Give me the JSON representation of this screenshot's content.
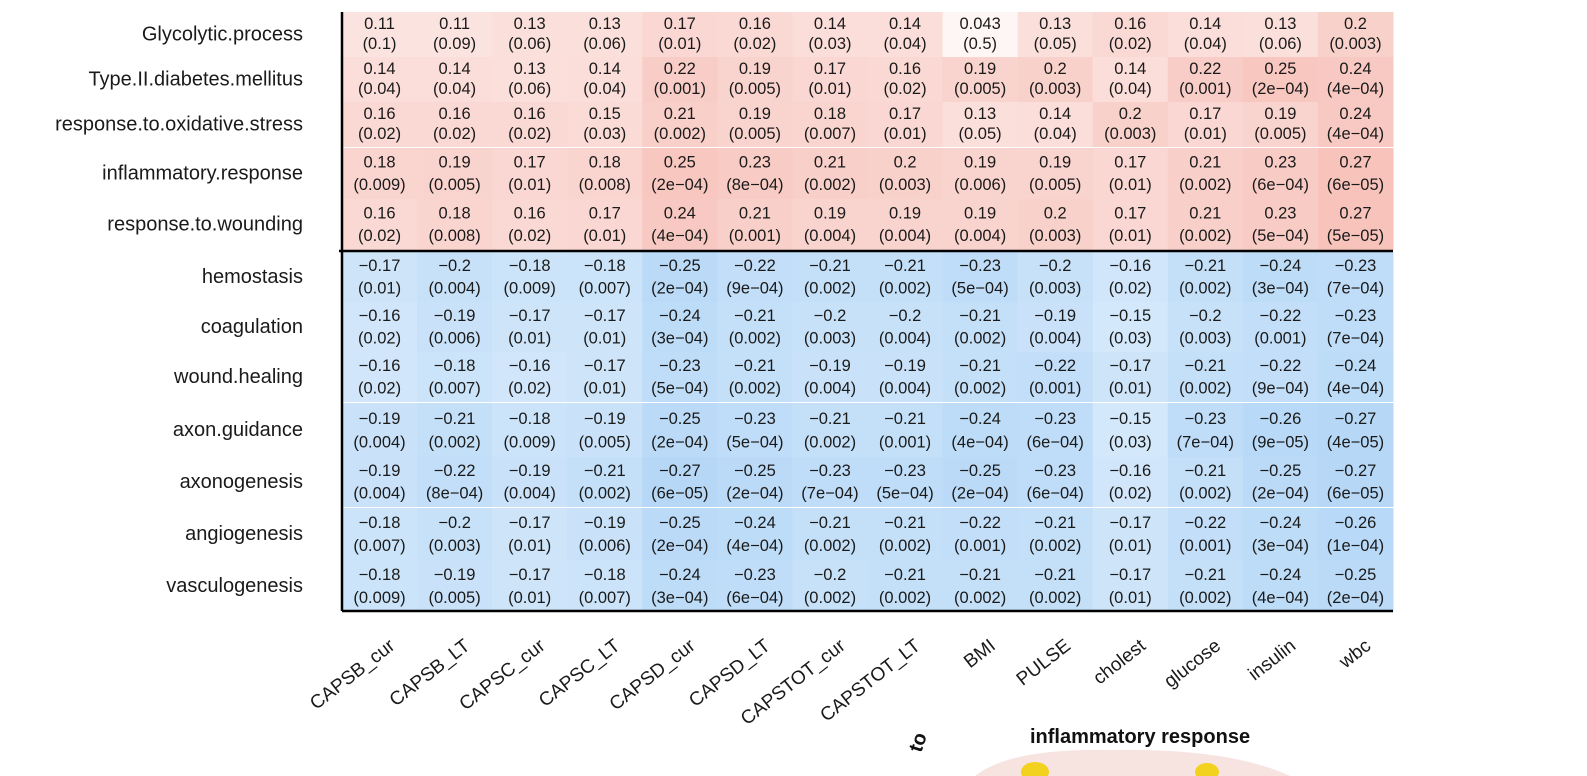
{
  "chart_data": {
    "type": "heatmap",
    "rows": [
      "Glycolytic.process",
      "Type.II.diabetes.mellitus",
      "response.to.oxidative.stress",
      "inflammatory.response",
      "response.to.wounding",
      "hemostasis",
      "coagulation",
      "wound.healing",
      "axon.guidance",
      "axonogenesis",
      "angiogenesis",
      "vasculogenesis"
    ],
    "columns": [
      "CAPSB_cur",
      "CAPSB_LT",
      "CAPSC_cur",
      "CAPSC_LT",
      "CAPSD_cur",
      "CAPSD_LT",
      "CAPSTOT_cur",
      "CAPSTOT_LT",
      "BMI",
      "PULSE",
      "cholest",
      "glucose",
      "insulin",
      "wbc"
    ],
    "values": [
      [
        "0.11",
        "0.11",
        "0.13",
        "0.13",
        "0.17",
        "0.16",
        "0.14",
        "0.14",
        "0.043",
        "0.13",
        "0.16",
        "0.14",
        "0.13",
        "0.2"
      ],
      [
        "0.14",
        "0.14",
        "0.13",
        "0.14",
        "0.22",
        "0.19",
        "0.17",
        "0.16",
        "0.19",
        "0.2",
        "0.14",
        "0.22",
        "0.25",
        "0.24"
      ],
      [
        "0.16",
        "0.16",
        "0.16",
        "0.15",
        "0.21",
        "0.19",
        "0.18",
        "0.17",
        "0.13",
        "0.14",
        "0.2",
        "0.17",
        "0.19",
        "0.24"
      ],
      [
        "0.18",
        "0.19",
        "0.17",
        "0.18",
        "0.25",
        "0.23",
        "0.21",
        "0.2",
        "0.19",
        "0.19",
        "0.17",
        "0.21",
        "0.23",
        "0.27"
      ],
      [
        "0.16",
        "0.18",
        "0.16",
        "0.17",
        "0.24",
        "0.21",
        "0.19",
        "0.19",
        "0.19",
        "0.2",
        "0.17",
        "0.21",
        "0.23",
        "0.27"
      ],
      [
        "−0.17",
        "−0.2",
        "−0.18",
        "−0.18",
        "−0.25",
        "−0.22",
        "−0.21",
        "−0.21",
        "−0.23",
        "−0.2",
        "−0.16",
        "−0.21",
        "−0.24",
        "−0.23"
      ],
      [
        "−0.16",
        "−0.19",
        "−0.17",
        "−0.17",
        "−0.24",
        "−0.21",
        "−0.2",
        "−0.2",
        "−0.21",
        "−0.19",
        "−0.15",
        "−0.2",
        "−0.22",
        "−0.23"
      ],
      [
        "−0.16",
        "−0.18",
        "−0.16",
        "−0.17",
        "−0.23",
        "−0.21",
        "−0.19",
        "−0.19",
        "−0.21",
        "−0.22",
        "−0.17",
        "−0.21",
        "−0.22",
        "−0.24"
      ],
      [
        "−0.19",
        "−0.21",
        "−0.18",
        "−0.19",
        "−0.25",
        "−0.23",
        "−0.21",
        "−0.21",
        "−0.24",
        "−0.23",
        "−0.15",
        "−0.23",
        "−0.26",
        "−0.27"
      ],
      [
        "−0.19",
        "−0.22",
        "−0.19",
        "−0.21",
        "−0.27",
        "−0.25",
        "−0.23",
        "−0.23",
        "−0.25",
        "−0.23",
        "−0.16",
        "−0.21",
        "−0.25",
        "−0.27"
      ],
      [
        "−0.18",
        "−0.2",
        "−0.17",
        "−0.19",
        "−0.25",
        "−0.24",
        "−0.21",
        "−0.21",
        "−0.22",
        "−0.21",
        "−0.17",
        "−0.22",
        "−0.24",
        "−0.26"
      ],
      [
        "−0.18",
        "−0.19",
        "−0.17",
        "−0.18",
        "−0.24",
        "−0.23",
        "−0.2",
        "−0.21",
        "−0.21",
        "−0.21",
        "−0.17",
        "−0.21",
        "−0.24",
        "−0.25"
      ]
    ],
    "pvalues": [
      [
        "(0.1)",
        "(0.09)",
        "(0.06)",
        "(0.06)",
        "(0.01)",
        "(0.02)",
        "(0.03)",
        "(0.04)",
        "(0.5)",
        "(0.05)",
        "(0.02)",
        "(0.04)",
        "(0.06)",
        "(0.003)"
      ],
      [
        "(0.04)",
        "(0.04)",
        "(0.06)",
        "(0.04)",
        "(0.001)",
        "(0.005)",
        "(0.01)",
        "(0.02)",
        "(0.005)",
        "(0.003)",
        "(0.04)",
        "(0.001)",
        "(2e−04)",
        "(4e−04)"
      ],
      [
        "(0.02)",
        "(0.02)",
        "(0.02)",
        "(0.03)",
        "(0.002)",
        "(0.005)",
        "(0.007)",
        "(0.01)",
        "(0.05)",
        "(0.04)",
        "(0.003)",
        "(0.01)",
        "(0.005)",
        "(4e−04)"
      ],
      [
        "(0.009)",
        "(0.005)",
        "(0.01)",
        "(0.008)",
        "(2e−04)",
        "(8e−04)",
        "(0.002)",
        "(0.003)",
        "(0.006)",
        "(0.005)",
        "(0.01)",
        "(0.002)",
        "(6e−04)",
        "(6e−05)"
      ],
      [
        "(0.02)",
        "(0.008)",
        "(0.02)",
        "(0.01)",
        "(4e−04)",
        "(0.001)",
        "(0.004)",
        "(0.004)",
        "(0.004)",
        "(0.003)",
        "(0.01)",
        "(0.002)",
        "(5e−04)",
        "(5e−05)"
      ],
      [
        "(0.01)",
        "(0.004)",
        "(0.009)",
        "(0.007)",
        "(2e−04)",
        "(9e−04)",
        "(0.002)",
        "(0.002)",
        "(5e−04)",
        "(0.003)",
        "(0.02)",
        "(0.002)",
        "(3e−04)",
        "(7e−04)"
      ],
      [
        "(0.02)",
        "(0.006)",
        "(0.01)",
        "(0.01)",
        "(3e−04)",
        "(0.002)",
        "(0.003)",
        "(0.004)",
        "(0.002)",
        "(0.004)",
        "(0.03)",
        "(0.003)",
        "(0.001)",
        "(7e−04)"
      ],
      [
        "(0.02)",
        "(0.007)",
        "(0.02)",
        "(0.01)",
        "(5e−04)",
        "(0.002)",
        "(0.004)",
        "(0.004)",
        "(0.002)",
        "(0.001)",
        "(0.01)",
        "(0.002)",
        "(9e−04)",
        "(4e−04)"
      ],
      [
        "(0.004)",
        "(0.002)",
        "(0.009)",
        "(0.005)",
        "(2e−04)",
        "(5e−04)",
        "(0.002)",
        "(0.001)",
        "(4e−04)",
        "(6e−04)",
        "(0.03)",
        "(7e−04)",
        "(9e−05)",
        "(4e−05)"
      ],
      [
        "(0.004)",
        "(8e−04)",
        "(0.004)",
        "(0.002)",
        "(6e−05)",
        "(2e−04)",
        "(7e−04)",
        "(5e−04)",
        "(2e−04)",
        "(6e−04)",
        "(0.02)",
        "(0.002)",
        "(2e−04)",
        "(6e−05)"
      ],
      [
        "(0.007)",
        "(0.003)",
        "(0.01)",
        "(0.006)",
        "(2e−04)",
        "(4e−04)",
        "(0.002)",
        "(0.002)",
        "(0.001)",
        "(0.002)",
        "(0.01)",
        "(0.001)",
        "(3e−04)",
        "(1e−04)"
      ],
      [
        "(0.009)",
        "(0.005)",
        "(0.01)",
        "(0.007)",
        "(3e−04)",
        "(6e−04)",
        "(0.002)",
        "(0.002)",
        "(0.002)",
        "(0.002)",
        "(0.01)",
        "(0.002)",
        "(4e−04)",
        "(2e−04)"
      ]
    ],
    "colors": {
      "positive": "#f08a7a",
      "negative": "#6fb2ee",
      "neutral": "#ffffff",
      "divider": "#000000"
    }
  },
  "inset": {
    "title": "inflammatory response",
    "side_label": "to"
  }
}
